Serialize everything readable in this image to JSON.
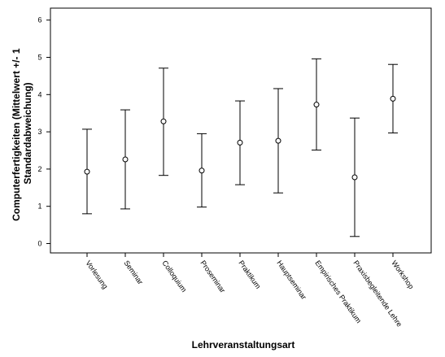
{
  "chart_data": {
    "type": "errorbar",
    "title": "",
    "xlabel": "Lehrveranstaltungsart",
    "ylabel_lines": [
      "Computerfertigkeiten (Mittelwert +/- 1",
      "Standardabweichung)"
    ],
    "ylim": [
      0,
      6
    ],
    "yticks": [
      0,
      1,
      2,
      3,
      4,
      5,
      6
    ],
    "grid": false,
    "categories": [
      "Vorlesung",
      "Seminar",
      "Colloquium",
      "Proseminar",
      "Praktikum",
      "Hauptseminar",
      "Empirisches Praktikum",
      "Praxisbegleitende Lehre",
      "Workshop"
    ],
    "means": [
      1.93,
      2.26,
      3.28,
      1.96,
      2.71,
      2.76,
      3.73,
      1.78,
      3.89
    ],
    "lower": [
      0.8,
      0.93,
      1.83,
      0.98,
      1.58,
      1.36,
      2.51,
      0.19,
      2.97
    ],
    "upper": [
      3.07,
      3.59,
      4.71,
      2.95,
      3.83,
      4.16,
      4.96,
      3.37,
      4.81
    ]
  }
}
